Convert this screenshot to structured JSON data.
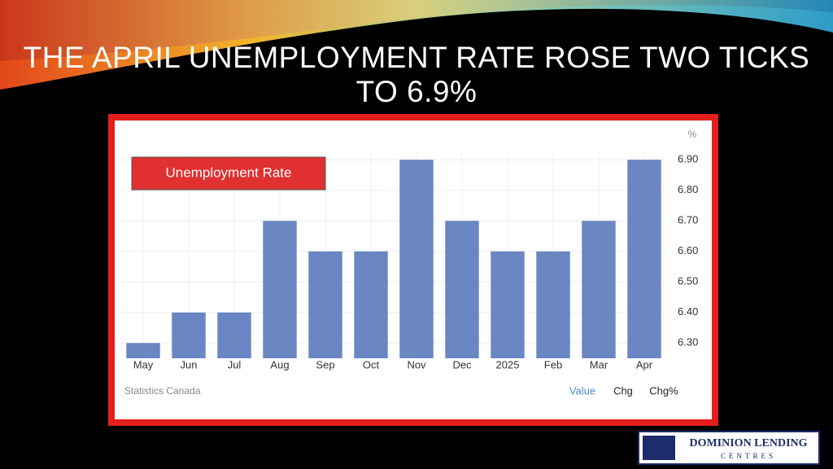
{
  "slide": {
    "title": "THE APRIL UNEMPLOYMENT RATE ROSE TWO TICKS TO 6.9%",
    "logo": {
      "line1": "DOMINION LENDING",
      "line2": "CENTRES"
    }
  },
  "chart_data": {
    "type": "bar",
    "unit": "%",
    "categories": [
      "May",
      "Jun",
      "Jul",
      "Aug",
      "Sep",
      "Oct",
      "Nov",
      "Dec",
      "2025",
      "Feb",
      "Mar",
      "Apr"
    ],
    "series": [
      {
        "name": "Unemployment Rate",
        "color": "#6a86c3",
        "values": [
          6.3,
          6.4,
          6.4,
          6.7,
          6.6,
          6.6,
          6.9,
          6.7,
          6.6,
          6.6,
          6.7,
          6.9
        ]
      }
    ],
    "legend_color": "#e03030",
    "ylim": [
      6.25,
      6.93
    ],
    "yticks": [
      {
        "value": 6.3,
        "label": "6.30"
      },
      {
        "value": 6.4,
        "label": "6.40"
      },
      {
        "value": 6.5,
        "label": "6.50"
      },
      {
        "value": 6.6,
        "label": "6.60"
      },
      {
        "value": 6.7,
        "label": "6.70"
      },
      {
        "value": 6.8,
        "label": "6.80"
      },
      {
        "value": 6.9,
        "label": "6.90"
      }
    ],
    "grid": true,
    "source": "Statistics Canada",
    "tabs": [
      "Value",
      "Chg",
      "Chg%"
    ]
  }
}
